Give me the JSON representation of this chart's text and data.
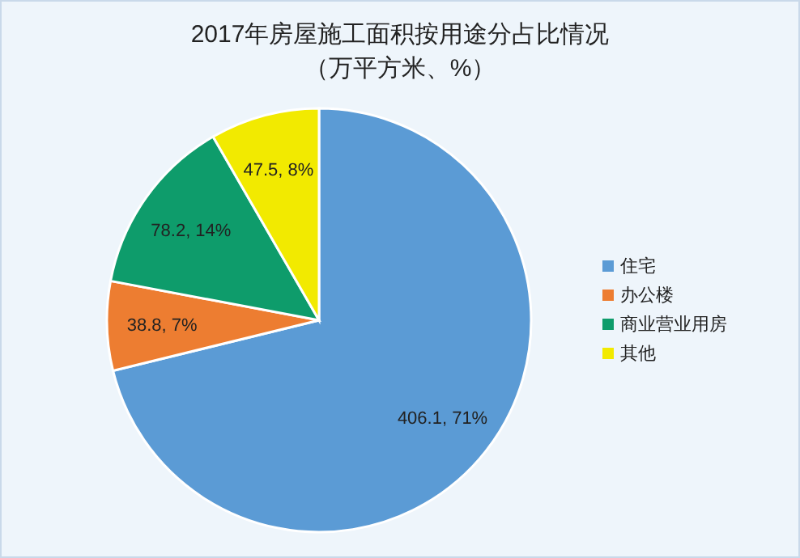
{
  "chart_data": {
    "type": "pie",
    "title": "2017年房屋施工面积按用途分占比情况",
    "subtitle": "（万平方米、%）",
    "categories": [
      "住宅",
      "办公楼",
      "商业营业用房",
      "其他"
    ],
    "values": [
      406.1,
      38.8,
      78.2,
      47.5
    ],
    "value_labels": [
      "406.1, 71%",
      "38.8, 7%",
      "78.2, 14%",
      "47.5, 8%"
    ],
    "colors": [
      "#5b9bd5",
      "#ed7d31",
      "#0e9c6b",
      "#f2ea00"
    ],
    "legend": "right"
  }
}
